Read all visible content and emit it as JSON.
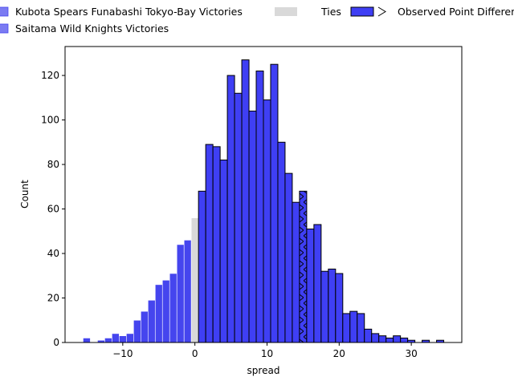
{
  "chart_data": {
    "type": "bar",
    "xlabel": "spread",
    "ylabel": "Count",
    "xlim": [
      -18,
      37
    ],
    "ylim": [
      0,
      133
    ],
    "grid": false,
    "legend_position": "top",
    "x_ticks": [
      -10,
      0,
      10,
      20,
      30
    ],
    "y_ticks": [
      0,
      20,
      40,
      60,
      80,
      100,
      120
    ],
    "bin_width": 1,
    "legend": [
      {
        "label": "Kubota Spears Funabashi Tokyo-Bay Victories",
        "color": "#7b7bf2",
        "hatch": false
      },
      {
        "label": "Saitama Wild Knights Victories",
        "color": "#7b7bf2",
        "hatch": false
      },
      {
        "label": "Ties",
        "color": "#d9d9d9",
        "hatch": false
      },
      {
        "label": "Observed Point Differential",
        "color": "#3f3ff4",
        "hatch": true
      }
    ],
    "series": [
      {
        "group": "kubota",
        "color": "#4545ee",
        "bins": [
          {
            "x": -15.5,
            "count": 2
          },
          {
            "x": -14.5,
            "count": 0
          },
          {
            "x": -13.5,
            "count": 1
          },
          {
            "x": -12.5,
            "count": 2
          },
          {
            "x": -11.5,
            "count": 4
          },
          {
            "x": -10.5,
            "count": 3
          },
          {
            "x": -9.5,
            "count": 4
          },
          {
            "x": -8.5,
            "count": 10
          },
          {
            "x": -7.5,
            "count": 14
          },
          {
            "x": -6.5,
            "count": 19
          },
          {
            "x": -5.5,
            "count": 26
          },
          {
            "x": -4.5,
            "count": 28
          },
          {
            "x": -3.5,
            "count": 31
          },
          {
            "x": -2.5,
            "count": 44
          },
          {
            "x": -1.5,
            "count": 46
          }
        ]
      },
      {
        "group": "ties",
        "color": "#d9d9d9",
        "bins": [
          {
            "x": -0.5,
            "count": 56
          }
        ]
      },
      {
        "group": "saitama",
        "color": "#3f3ff4",
        "bins": [
          {
            "x": 0.5,
            "count": 68
          },
          {
            "x": 1.5,
            "count": 89
          },
          {
            "x": 2.5,
            "count": 88
          },
          {
            "x": 3.5,
            "count": 82
          },
          {
            "x": 4.5,
            "count": 120
          },
          {
            "x": 5.5,
            "count": 112
          },
          {
            "x": 6.5,
            "count": 127
          },
          {
            "x": 7.5,
            "count": 104
          },
          {
            "x": 8.5,
            "count": 122
          },
          {
            "x": 9.5,
            "count": 109
          },
          {
            "x": 10.5,
            "count": 125
          },
          {
            "x": 11.5,
            "count": 90
          },
          {
            "x": 12.5,
            "count": 76
          },
          {
            "x": 13.5,
            "count": 63
          },
          {
            "x": 14.5,
            "count": 68,
            "observed": true
          },
          {
            "x": 15.5,
            "count": 51
          },
          {
            "x": 16.5,
            "count": 53
          },
          {
            "x": 17.5,
            "count": 32
          },
          {
            "x": 18.5,
            "count": 33
          },
          {
            "x": 19.5,
            "count": 31
          },
          {
            "x": 20.5,
            "count": 13
          },
          {
            "x": 21.5,
            "count": 14
          },
          {
            "x": 22.5,
            "count": 13
          },
          {
            "x": 23.5,
            "count": 6
          },
          {
            "x": 24.5,
            "count": 4
          },
          {
            "x": 25.5,
            "count": 3
          },
          {
            "x": 26.5,
            "count": 2
          },
          {
            "x": 27.5,
            "count": 3
          },
          {
            "x": 28.5,
            "count": 2
          },
          {
            "x": 29.5,
            "count": 1
          },
          {
            "x": 30.5,
            "count": 0
          },
          {
            "x": 31.5,
            "count": 1
          },
          {
            "x": 32.5,
            "count": 0
          },
          {
            "x": 33.5,
            "count": 1
          }
        ]
      }
    ]
  }
}
